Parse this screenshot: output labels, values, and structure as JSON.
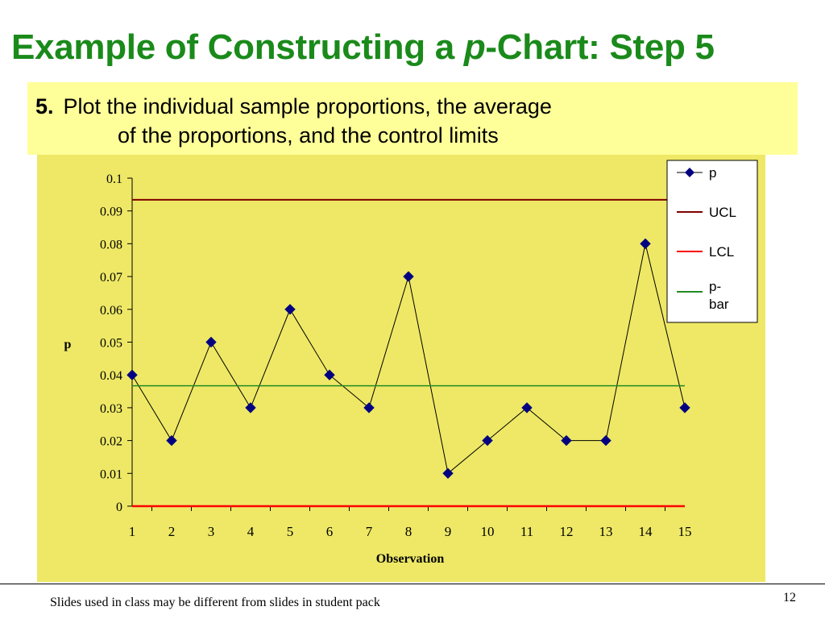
{
  "slide": {
    "title_part1": "Example of Constructing a ",
    "title_italic": "p",
    "title_part2": "-Chart: Step 5",
    "step_number": "5.",
    "step_line1": "Plot the individual sample proportions, the average",
    "step_line2": "of the proportions, and the control limits",
    "footer": "Slides used in class may be different from slides in student pack",
    "page_number": "12"
  },
  "colors": {
    "title": "#1a8a1a",
    "step_box_bg": "#ffff99",
    "chart_bg": "#eee866",
    "p_series": "#000080",
    "ucl": "#800000",
    "lcl": "#ff0000",
    "pbar": "#228b22"
  },
  "chart_data": {
    "type": "line",
    "xlabel": "Observation",
    "ylabel": "p",
    "ylim": [
      0,
      0.1
    ],
    "x": [
      1,
      2,
      3,
      4,
      5,
      6,
      7,
      8,
      9,
      10,
      11,
      12,
      13,
      14,
      15
    ],
    "yticks": [
      "0",
      "0.01",
      "0.02",
      "0.03",
      "0.04",
      "0.05",
      "0.06",
      "0.07",
      "0.08",
      "0.09",
      "0.1"
    ],
    "grid": false,
    "legend_position": "top-right",
    "series": [
      {
        "name": "p",
        "marker": "diamond",
        "values": [
          0.04,
          0.02,
          0.05,
          0.03,
          0.06,
          0.04,
          0.03,
          0.07,
          0.01,
          0.02,
          0.03,
          0.02,
          0.02,
          0.08,
          0.03
        ]
      },
      {
        "name": "UCL",
        "values": [
          0.0934,
          0.0934,
          0.0934,
          0.0934,
          0.0934,
          0.0934,
          0.0934,
          0.0934,
          0.0934,
          0.0934,
          0.0934,
          0.0934,
          0.0934,
          0.0934,
          0.0934
        ]
      },
      {
        "name": "LCL",
        "values": [
          0,
          0,
          0,
          0,
          0,
          0,
          0,
          0,
          0,
          0,
          0,
          0,
          0,
          0,
          0
        ]
      },
      {
        "name": "p-bar",
        "values": [
          0.0367,
          0.0367,
          0.0367,
          0.0367,
          0.0367,
          0.0367,
          0.0367,
          0.0367,
          0.0367,
          0.0367,
          0.0367,
          0.0367,
          0.0367,
          0.0367,
          0.0367
        ]
      }
    ]
  }
}
